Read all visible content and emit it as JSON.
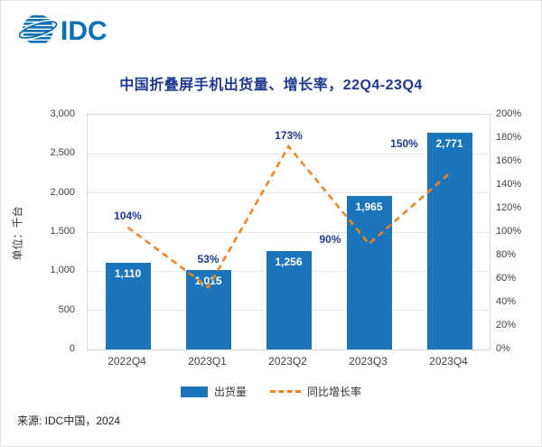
{
  "header": {
    "logo_text": "IDC"
  },
  "source": "来源: IDC中国，2024",
  "legend": [
    {
      "label": "出货量",
      "type": "bar",
      "color": "#1b75bc"
    },
    {
      "label": "同比增长率",
      "type": "dashed-line",
      "color": "#ef8322"
    }
  ],
  "chart_data": {
    "type": "bar",
    "title": "中国折叠屏手机出货量、增长率，22Q4-23Q4",
    "categories": [
      "2022Q4",
      "2023Q1",
      "2023Q2",
      "2023Q3",
      "2023Q4"
    ],
    "series": [
      {
        "name": "出货量",
        "type": "bar",
        "axis": "left",
        "color": "#1b75bc",
        "values": [
          1110,
          1015,
          1256,
          1965,
          2771
        ],
        "labels": [
          "1,110",
          "1,015",
          "1,256",
          "1,965",
          "2,771"
        ]
      },
      {
        "name": "同比增长率",
        "type": "line-dashed",
        "axis": "right",
        "color": "#ef8322",
        "values": [
          104,
          53,
          173,
          90,
          150
        ],
        "labels": [
          "104%",
          "53%",
          "173%",
          "90%",
          "150%"
        ]
      }
    ],
    "left_axis": {
      "title": "单位：千台",
      "min": 0,
      "max": 3000,
      "step": 500,
      "ticks": [
        "0",
        "500",
        "1,000",
        "1,500",
        "2,000",
        "2,500",
        "3,000"
      ]
    },
    "right_axis": {
      "min": 0,
      "max": 200,
      "step": 20,
      "ticks": [
        "0%",
        "20%",
        "40%",
        "60%",
        "80%",
        "100%",
        "120%",
        "140%",
        "160%",
        "180%",
        "200%"
      ]
    },
    "grid": true,
    "legend_position": "bottom",
    "accent_colors": {
      "title": "#1f3a8f",
      "bar": "#1b75bc",
      "line": "#ef8322",
      "logo": "#0a70b4"
    }
  }
}
